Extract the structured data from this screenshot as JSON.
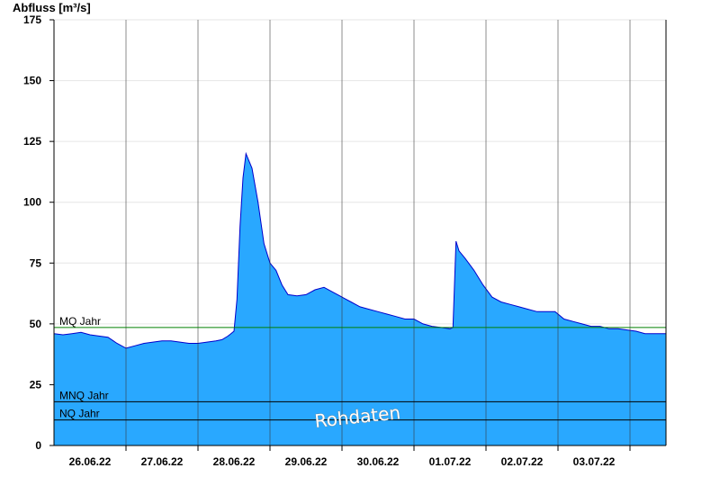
{
  "chart_data": {
    "type": "area",
    "ylabel": "Abfluss [m³/s]",
    "ylim": [
      0,
      175
    ],
    "yticks": [
      0,
      25,
      50,
      75,
      100,
      125,
      150,
      175
    ],
    "xlim": [
      "2022-06-25T12:00",
      "2022-07-04T00:00"
    ],
    "day_boundaries": [
      "2022-06-26T12:00",
      "2022-06-27T12:00",
      "2022-06-28T12:00",
      "2022-06-29T12:00",
      "2022-06-30T12:00",
      "2022-07-01T12:00",
      "2022-07-02T12:00",
      "2022-07-03T12:00"
    ],
    "xtick_labels": [
      "26.06.22",
      "27.06.22",
      "28.06.22",
      "29.06.22",
      "30.06.22",
      "01.07.22",
      "02.07.22",
      "03.07.22"
    ],
    "xtick_positions": [
      "2022-06-26T00:00",
      "2022-06-27T00:00",
      "2022-06-28T00:00",
      "2022-06-29T00:00",
      "2022-06-30T00:00",
      "2022-07-01T00:00",
      "2022-07-02T00:00",
      "2022-07-03T00:00"
    ],
    "fill_color": "#29a8ff",
    "line_color": "#0000cc",
    "grid": true,
    "reference_lines": [
      {
        "label": "MQ Jahr",
        "value": 48.5,
        "color": "#008000"
      },
      {
        "label": "MNQ Jahr",
        "value": 18,
        "color": "#000000"
      },
      {
        "label": "NQ Jahr",
        "value": 10.5,
        "color": "#000000"
      }
    ],
    "watermark": "Rohdaten",
    "series": [
      {
        "x": [
          "2022-06-25T12:00",
          "2022-06-25T15:00",
          "2022-06-25T18:00",
          "2022-06-25T21:00",
          "2022-06-26T00:00",
          "2022-06-26T03:00",
          "2022-06-26T06:00",
          "2022-06-26T09:00",
          "2022-06-26T12:00",
          "2022-06-26T15:00",
          "2022-06-26T18:00",
          "2022-06-26T21:00",
          "2022-06-27T00:00",
          "2022-06-27T03:00",
          "2022-06-27T06:00",
          "2022-06-27T09:00",
          "2022-06-27T12:00",
          "2022-06-27T15:00",
          "2022-06-27T18:00",
          "2022-06-27T20:00",
          "2022-06-27T22:00",
          "2022-06-28T00:00",
          "2022-06-28T01:00",
          "2022-06-28T02:00",
          "2022-06-28T03:00",
          "2022-06-28T04:00",
          "2022-06-28T06:00",
          "2022-06-28T08:00",
          "2022-06-28T10:00",
          "2022-06-28T12:00",
          "2022-06-28T14:00",
          "2022-06-28T16:00",
          "2022-06-28T18:00",
          "2022-06-28T21:00",
          "2022-06-29T00:00",
          "2022-06-29T03:00",
          "2022-06-29T06:00",
          "2022-06-29T09:00",
          "2022-06-29T12:00",
          "2022-06-29T15:00",
          "2022-06-29T18:00",
          "2022-06-29T21:00",
          "2022-06-30T00:00",
          "2022-06-30T03:00",
          "2022-06-30T06:00",
          "2022-06-30T09:00",
          "2022-06-30T12:00",
          "2022-06-30T15:00",
          "2022-06-30T18:00",
          "2022-06-30T21:00",
          "2022-07-01T00:00",
          "2022-07-01T01:00",
          "2022-07-01T02:00",
          "2022-07-01T03:00",
          "2022-07-01T05:00",
          "2022-07-01T08:00",
          "2022-07-01T11:00",
          "2022-07-01T14:00",
          "2022-07-01T17:00",
          "2022-07-01T20:00",
          "2022-07-01T23:00",
          "2022-07-02T02:00",
          "2022-07-02T05:00",
          "2022-07-02T08:00",
          "2022-07-02T11:00",
          "2022-07-02T14:00",
          "2022-07-02T17:00",
          "2022-07-02T20:00",
          "2022-07-02T23:00",
          "2022-07-03T02:00",
          "2022-07-03T05:00",
          "2022-07-03T08:00",
          "2022-07-03T11:00",
          "2022-07-03T14:00",
          "2022-07-03T17:00",
          "2022-07-03T20:00",
          "2022-07-04T00:00"
        ],
        "y": [
          46,
          45.5,
          46,
          46.5,
          45.5,
          45,
          44.5,
          42,
          40,
          41,
          42,
          42.5,
          43,
          43,
          42.5,
          42,
          42,
          42.5,
          43,
          43.5,
          45,
          47,
          60,
          90,
          110,
          120,
          114,
          100,
          83,
          75,
          72,
          66,
          62,
          61.5,
          62,
          64,
          65,
          63,
          61,
          59,
          57,
          56,
          55,
          54,
          53,
          52,
          52,
          50,
          49,
          48.5,
          48,
          48.5,
          84,
          80,
          77,
          72,
          66,
          61,
          59,
          58,
          57,
          56,
          55,
          55,
          55,
          52,
          51,
          50,
          49,
          49,
          48,
          48,
          47.5,
          47,
          46,
          46,
          46
        ]
      }
    ]
  }
}
